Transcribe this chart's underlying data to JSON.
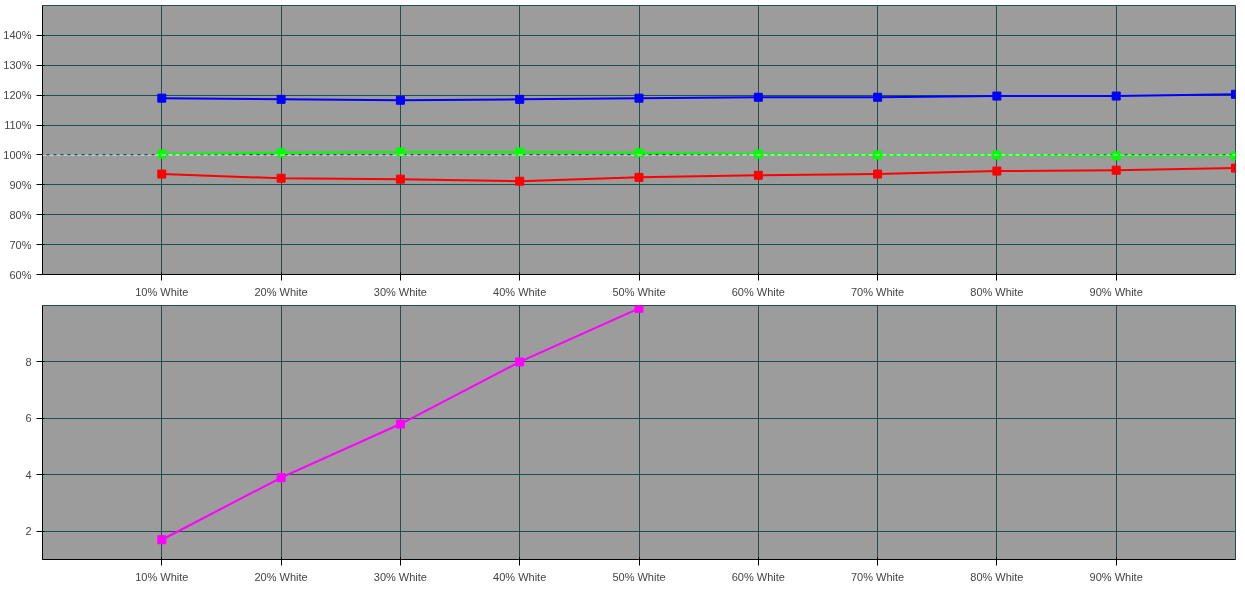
{
  "chart_data": [
    {
      "type": "line",
      "x": [
        10,
        20,
        30,
        40,
        50,
        60,
        70,
        80,
        90,
        100
      ],
      "marker": "square",
      "grid": true,
      "xlim": [
        0,
        100
      ],
      "xticks": [
        {
          "value": 10,
          "label": "10% White"
        },
        {
          "value": 20,
          "label": "20% White"
        },
        {
          "value": 30,
          "label": "30% White"
        },
        {
          "value": 40,
          "label": "40% White"
        },
        {
          "value": 50,
          "label": "50% White"
        },
        {
          "value": 60,
          "label": "60% White"
        },
        {
          "value": 70,
          "label": "70% White"
        },
        {
          "value": 80,
          "label": "80% White"
        },
        {
          "value": 90,
          "label": "90% White"
        }
      ],
      "ylim": [
        60,
        150
      ],
      "yticks": [
        {
          "value": 60,
          "label": "60%"
        },
        {
          "value": 70,
          "label": "70%"
        },
        {
          "value": 80,
          "label": "80%"
        },
        {
          "value": 90,
          "label": "90%"
        },
        {
          "value": 100,
          "label": "100%"
        },
        {
          "value": 110,
          "label": "110%"
        },
        {
          "value": 120,
          "label": "120%"
        },
        {
          "value": 130,
          "label": "130%"
        },
        {
          "value": 140,
          "label": "140%"
        }
      ],
      "ref_lines": [
        {
          "axis": "y",
          "value": 100,
          "color": "#ffffff",
          "line_style": "dashed"
        }
      ],
      "series": [
        {
          "color": "#0000ff",
          "values": [
            119,
            118.6,
            118.3,
            118.6,
            119,
            119.3,
            119.3,
            119.7,
            119.7,
            120.3
          ]
        },
        {
          "color": "#00ff00",
          "values": [
            100.3,
            100.7,
            101,
            101,
            100.7,
            100.3,
            100,
            100,
            99.7,
            99.7
          ]
        },
        {
          "color": "#ff0000",
          "values": [
            93.6,
            92.2,
            91.9,
            91.2,
            92.5,
            93.2,
            93.6,
            94.6,
            94.9,
            95.6
          ]
        }
      ]
    },
    {
      "type": "line",
      "x": [
        10,
        20,
        30,
        40,
        50
      ],
      "marker": "square",
      "grid": true,
      "xlim": [
        0,
        100
      ],
      "xticks": [
        {
          "value": 10,
          "label": "10% White"
        },
        {
          "value": 20,
          "label": "20% White"
        },
        {
          "value": 30,
          "label": "30% White"
        },
        {
          "value": 40,
          "label": "40% White"
        },
        {
          "value": 50,
          "label": "50% White"
        },
        {
          "value": 60,
          "label": "60% White"
        },
        {
          "value": 70,
          "label": "70% White"
        },
        {
          "value": 80,
          "label": "80% White"
        },
        {
          "value": 90,
          "label": "90% White"
        }
      ],
      "ylim": [
        1,
        10
      ],
      "yticks": [
        2,
        4,
        6,
        8
      ],
      "series": [
        {
          "color": "#ff00ff",
          "values": [
            1.7,
            3.9,
            5.8,
            8.0,
            9.9
          ]
        }
      ]
    }
  ]
}
